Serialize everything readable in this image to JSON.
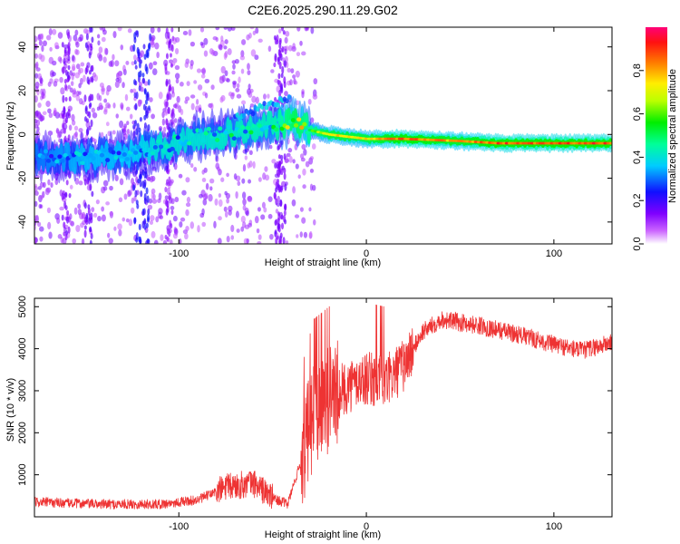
{
  "title": "C2E6.2025.290.11.29.G02",
  "chart_data": [
    {
      "type": "heatmap",
      "title": "C2E6.2025.290.11.29.G02",
      "xlabel": "Height of straight line (km)",
      "ylabel": "Frequency (Hz)",
      "xlim": [
        -177,
        131
      ],
      "ylim": [
        -50,
        49
      ],
      "xticks": [
        -100,
        0,
        100
      ],
      "yticks": [
        -40,
        -20,
        0,
        20,
        40
      ],
      "colorbar": {
        "label": "Normalized spectral amplitude",
        "range": [
          0,
          1
        ],
        "ticks": [
          0.0,
          0.2,
          0.4,
          0.6,
          0.8
        ]
      },
      "ridge": [
        {
          "x": -177,
          "y": -10,
          "amp": 0.3
        },
        {
          "x": -150,
          "y": -11,
          "amp": 0.35
        },
        {
          "x": -130,
          "y": -9,
          "amp": 0.35
        },
        {
          "x": -110,
          "y": -6,
          "amp": 0.4
        },
        {
          "x": -90,
          "y": -1,
          "amp": 0.4
        },
        {
          "x": -70,
          "y": 1,
          "amp": 0.45
        },
        {
          "x": -50,
          "y": 4,
          "amp": 0.5
        },
        {
          "x": -38,
          "y": 6,
          "amp": 0.75
        },
        {
          "x": -30,
          "y": 2,
          "amp": 0.6
        },
        {
          "x": -20,
          "y": 0,
          "amp": 0.8
        },
        {
          "x": 0,
          "y": -2,
          "amp": 0.8
        },
        {
          "x": 20,
          "y": -2,
          "amp": 0.95
        },
        {
          "x": 50,
          "y": -3,
          "amp": 0.85
        },
        {
          "x": 70,
          "y": -4,
          "amp": 0.95
        },
        {
          "x": 100,
          "y": -4,
          "amp": 0.95
        },
        {
          "x": 131,
          "y": -4,
          "amp": 0.95
        }
      ]
    },
    {
      "type": "line",
      "xlabel": "Height of straight line (km)",
      "ylabel": "SNR (10 * v/v)",
      "xlim": [
        -177,
        131
      ],
      "ylim": [
        0,
        5200
      ],
      "xticks": [
        -100,
        0,
        100
      ],
      "yticks": [
        1000,
        2000,
        3000,
        4000,
        5000
      ],
      "color": "#ee3333",
      "envelope": [
        {
          "x": -177,
          "y": 350
        },
        {
          "x": -140,
          "y": 300
        },
        {
          "x": -110,
          "y": 300
        },
        {
          "x": -90,
          "y": 400
        },
        {
          "x": -75,
          "y": 700
        },
        {
          "x": -60,
          "y": 800
        },
        {
          "x": -50,
          "y": 450
        },
        {
          "x": -42,
          "y": 300
        },
        {
          "x": -35,
          "y": 1300
        },
        {
          "x": -28,
          "y": 2500
        },
        {
          "x": -20,
          "y": 2800
        },
        {
          "x": -10,
          "y": 3100
        },
        {
          "x": 0,
          "y": 3300
        },
        {
          "x": 10,
          "y": 3200
        },
        {
          "x": 20,
          "y": 3600
        },
        {
          "x": 30,
          "y": 4400
        },
        {
          "x": 40,
          "y": 4700
        },
        {
          "x": 60,
          "y": 4550
        },
        {
          "x": 80,
          "y": 4350
        },
        {
          "x": 100,
          "y": 4100
        },
        {
          "x": 115,
          "y": 3950
        },
        {
          "x": 131,
          "y": 4150
        }
      ]
    }
  ]
}
